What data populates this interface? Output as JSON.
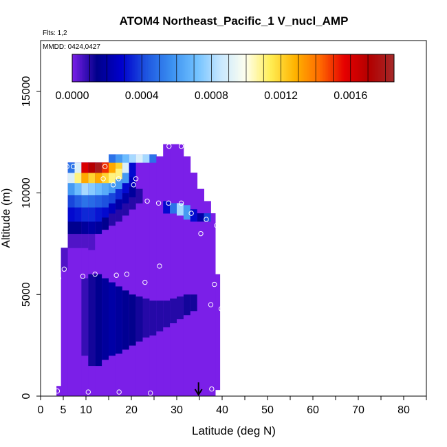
{
  "chart_data": {
    "type": "heatmap",
    "title": "ATOM4 Northeast_Pacific_1 V_nucl_AMP",
    "flights_note": "Flts: 1,2",
    "date_note": "MMDD: 0424,0427",
    "xlabel": "Latitude (deg N)",
    "ylabel": "Altitude (m)",
    "xlim": [
      0,
      85
    ],
    "ylim": [
      0,
      17500
    ],
    "x_ticks": [
      0,
      5,
      10,
      20,
      30,
      40,
      50,
      60,
      70,
      80
    ],
    "x_tick_labels": [
      "0",
      "5",
      "10",
      "20",
      "30",
      "40",
      "50",
      "60",
      "70",
      "80"
    ],
    "y_ticks": [
      0,
      5000,
      10000,
      15000
    ],
    "y_tick_labels": [
      "0",
      "5000",
      "10000",
      "15000"
    ],
    "colorbar": {
      "range": [
        0,
        0.00185
      ],
      "ticks": [
        0,
        0.0004,
        0.0008,
        0.0012,
        0.0016
      ],
      "tick_labels": [
        "0.0000",
        "0.0004",
        "0.0008",
        "0.0012",
        "0.0016"
      ],
      "colors": [
        "#7b1fe8",
        "#00008b",
        "#0000cd",
        "#1e56e0",
        "#3a8ff0",
        "#6fc0ff",
        "#c8e8ff",
        "#ffffee",
        "#ffee55",
        "#ffb300",
        "#ff6a00",
        "#e60000",
        "#b30000",
        "#a52a2a"
      ]
    },
    "colors": {
      "background_field": "#7b1fe8",
      "marker": "#ffffff",
      "arrow": "#000000"
    },
    "columns": [
      {
        "x0": 3.5,
        "x1": 4.5,
        "ymin": 0,
        "ymax": 500,
        "cells": []
      },
      {
        "x0": 4.5,
        "x1": 6,
        "ymin": 0,
        "ymax": 7300,
        "cells": [
          [
            6200,
            7300,
            5e-05
          ]
        ]
      },
      {
        "x0": 6,
        "x1": 7.5,
        "ymin": 0,
        "ymax": 11500,
        "cells": [
          [
            7300,
            8000,
            5e-05
          ],
          [
            8000,
            8600,
            0.00015
          ],
          [
            8600,
            9300,
            0.0003
          ],
          [
            9300,
            9900,
            0.0004
          ],
          [
            9900,
            10500,
            0.0006
          ],
          [
            10500,
            11000,
            0.0009
          ],
          [
            11000,
            11500,
            0.0005
          ]
        ]
      },
      {
        "x0": 7.5,
        "x1": 9,
        "ymin": 0,
        "ymax": 11500,
        "cells": [
          [
            7300,
            8000,
            5e-05
          ],
          [
            8000,
            8600,
            0.00015
          ],
          [
            8600,
            9300,
            0.00032
          ],
          [
            9300,
            9900,
            0.00045
          ],
          [
            9900,
            10500,
            0.0007
          ],
          [
            10500,
            11000,
            0.0011
          ],
          [
            11000,
            11500,
            0.0009
          ]
        ]
      },
      {
        "x0": 9,
        "x1": 10.5,
        "ymin": 0,
        "ymax": 11500,
        "cells": [
          [
            2000,
            5800,
            8e-05
          ],
          [
            7300,
            8000,
            5e-05
          ],
          [
            8000,
            8600,
            0.00018
          ],
          [
            8600,
            9300,
            0.00035
          ],
          [
            9300,
            9900,
            0.0005
          ],
          [
            9900,
            10500,
            0.0008
          ],
          [
            10500,
            11000,
            0.0013
          ],
          [
            11000,
            11500,
            0.0016
          ]
        ]
      },
      {
        "x0": 10.5,
        "x1": 12,
        "ymin": 0,
        "ymax": 11500,
        "cells": [
          [
            1500,
            6000,
            0.00012
          ],
          [
            7200,
            8000,
            5e-05
          ],
          [
            8000,
            8600,
            0.0002
          ],
          [
            8600,
            9300,
            0.00035
          ],
          [
            9300,
            9900,
            0.00048
          ],
          [
            9900,
            10500,
            0.00075
          ],
          [
            10500,
            11000,
            0.0012
          ],
          [
            11000,
            11500,
            0.0017
          ]
        ]
      },
      {
        "x0": 12,
        "x1": 13.5,
        "ymin": 0,
        "ymax": 11500,
        "cells": [
          [
            1500,
            6000,
            0.00015
          ],
          [
            8000,
            8600,
            0.00018
          ],
          [
            8600,
            9300,
            0.00032
          ],
          [
            9300,
            9900,
            0.00045
          ],
          [
            9900,
            10500,
            0.0007
          ],
          [
            10500,
            11000,
            0.0013
          ],
          [
            11000,
            11500,
            0.0018
          ]
        ]
      },
      {
        "x0": 13.5,
        "x1": 15,
        "ymin": 0,
        "ymax": 11500,
        "cells": [
          [
            1800,
            5800,
            0.00018
          ],
          [
            8200,
            8800,
            0.00015
          ],
          [
            8800,
            9300,
            0.0003
          ],
          [
            9300,
            9900,
            0.00042
          ],
          [
            9900,
            10500,
            0.00065
          ],
          [
            10500,
            11000,
            0.0012
          ],
          [
            11000,
            11500,
            0.0015
          ]
        ]
      },
      {
        "x0": 15,
        "x1": 16.5,
        "ymin": 0,
        "ymax": 11900,
        "cells": [
          [
            2000,
            5600,
            0.0002
          ],
          [
            8400,
            9000,
            0.0001
          ],
          [
            9000,
            9500,
            0.00025
          ],
          [
            9500,
            10000,
            0.0004
          ],
          [
            10000,
            10500,
            0.0006
          ],
          [
            10500,
            11000,
            0.0011
          ],
          [
            11000,
            11500,
            0.0013
          ],
          [
            11500,
            11900,
            0.0005
          ]
        ]
      },
      {
        "x0": 16.5,
        "x1": 18,
        "ymin": 0,
        "ymax": 11900,
        "cells": [
          [
            2100,
            5400,
            0.00018
          ],
          [
            8600,
            9200,
            0.0001
          ],
          [
            9200,
            9700,
            0.0002
          ],
          [
            9700,
            10200,
            0.00035
          ],
          [
            10200,
            10700,
            0.0006
          ],
          [
            10700,
            11200,
            0.0011
          ],
          [
            11200,
            11500,
            0.0012
          ],
          [
            11500,
            11900,
            0.0006
          ]
        ]
      },
      {
        "x0": 18,
        "x1": 19.5,
        "ymin": 0,
        "ymax": 11900,
        "cells": [
          [
            2300,
            5200,
            0.00016
          ],
          [
            8900,
            9500,
            0.0001
          ],
          [
            9500,
            10000,
            0.0002
          ],
          [
            10000,
            10500,
            0.0003
          ],
          [
            10500,
            11000,
            0.0006
          ],
          [
            11000,
            11500,
            0.0009
          ],
          [
            11500,
            11900,
            0.0007
          ]
        ]
      },
      {
        "x0": 19.5,
        "x1": 21,
        "ymin": 0,
        "ymax": 11900,
        "cells": [
          [
            2500,
            5000,
            0.00014
          ],
          [
            9200,
            9800,
            0.0001
          ],
          [
            9800,
            10300,
            0.00018
          ],
          [
            10300,
            10800,
            0.00025
          ],
          [
            10800,
            11500,
            0.0003
          ],
          [
            11500,
            11900,
            0.0008
          ]
        ]
      },
      {
        "x0": 21,
        "x1": 22.5,
        "ymin": 0,
        "ymax": 11900,
        "cells": [
          [
            2700,
            4900,
            0.00012
          ],
          [
            9500,
            10200,
            0.0001
          ],
          [
            11500,
            11900,
            0.0009
          ]
        ]
      },
      {
        "x0": 22.5,
        "x1": 24,
        "ymin": 0,
        "ymax": 11900,
        "cells": [
          [
            2900,
            4800,
            0.0001
          ],
          [
            11500,
            11900,
            0.0008
          ]
        ]
      },
      {
        "x0": 24,
        "x1": 25.5,
        "ymin": 0,
        "ymax": 11900,
        "cells": [
          [
            3000,
            4700,
            0.0001
          ],
          [
            11500,
            11900,
            0.0005
          ]
        ]
      },
      {
        "x0": 25.5,
        "x1": 27,
        "ymin": 0,
        "ymax": 11800,
        "cells": [
          [
            3200,
            4700,
            0.0001
          ]
        ]
      },
      {
        "x0": 27,
        "x1": 28.5,
        "ymin": 0,
        "ymax": 12400,
        "cells": [
          [
            3400,
            4700,
            0.0001
          ],
          [
            9000,
            9600,
            0.0003
          ]
        ]
      },
      {
        "x0": 28.5,
        "x1": 30,
        "ymin": 0,
        "ymax": 12400,
        "cells": [
          [
            3600,
            4800,
            0.0001
          ],
          [
            9000,
            9500,
            0.0005
          ]
        ]
      },
      {
        "x0": 30,
        "x1": 31.5,
        "ymin": 0,
        "ymax": 12400,
        "cells": [
          [
            3800,
            4900,
            0.0001
          ],
          [
            8900,
            9500,
            0.0008
          ]
        ]
      },
      {
        "x0": 31.5,
        "x1": 33,
        "ymin": 0,
        "ymax": 11800,
        "cells": [
          [
            4000,
            5000,
            0.00012
          ],
          [
            8700,
            9400,
            0.0006
          ]
        ]
      },
      {
        "x0": 33,
        "x1": 34.5,
        "ymin": 0,
        "ymax": 11000,
        "cells": [
          [
            4200,
            5000,
            0.00012
          ],
          [
            8600,
            9200,
            0.0003
          ]
        ]
      },
      {
        "x0": 34.5,
        "x1": 36,
        "ymin": 0,
        "ymax": 10200,
        "cells": [
          [
            8600,
            9000,
            0.0002
          ]
        ]
      },
      {
        "x0": 36,
        "x1": 37.5,
        "ymin": 0,
        "ymax": 9600,
        "cells": [
          [
            8600,
            9000,
            0.0004
          ]
        ]
      },
      {
        "x0": 37.5,
        "x1": 38.5,
        "ymin": 0,
        "ymax": 9000,
        "cells": []
      },
      {
        "x0": 38.5,
        "x1": 39.5,
        "ymin": 300,
        "ymax": 6000,
        "cells": []
      }
    ],
    "samples": [
      {
        "x": 3.7,
        "y": 250
      },
      {
        "x": 4.0,
        "y": 5800
      },
      {
        "x": 5.2,
        "y": 6250
      },
      {
        "x": 5.8,
        "y": 11300
      },
      {
        "x": 7.2,
        "y": 11300
      },
      {
        "x": 10.5,
        "y": 200
      },
      {
        "x": 9.3,
        "y": 5900
      },
      {
        "x": 12.0,
        "y": 6000
      },
      {
        "x": 13.8,
        "y": 10700
      },
      {
        "x": 14.2,
        "y": 11300
      },
      {
        "x": 16.0,
        "y": 10400
      },
      {
        "x": 16.7,
        "y": 5950
      },
      {
        "x": 17.2,
        "y": 10700
      },
      {
        "x": 17.3,
        "y": 200
      },
      {
        "x": 19.0,
        "y": 6000
      },
      {
        "x": 20.5,
        "y": 10400
      },
      {
        "x": 21.0,
        "y": 10700
      },
      {
        "x": 23.0,
        "y": 5600
      },
      {
        "x": 23.5,
        "y": 9600
      },
      {
        "x": 24.2,
        "y": 150
      },
      {
        "x": 26.0,
        "y": 9500
      },
      {
        "x": 26.2,
        "y": 6400
      },
      {
        "x": 28.2,
        "y": 9500
      },
      {
        "x": 28.3,
        "y": 12300
      },
      {
        "x": 31.0,
        "y": 12300
      },
      {
        "x": 31.0,
        "y": 9500
      },
      {
        "x": 33.2,
        "y": 9000
      },
      {
        "x": 35.3,
        "y": 8000
      },
      {
        "x": 36.5,
        "y": 8700
      },
      {
        "x": 37.5,
        "y": 4500
      },
      {
        "x": 37.7,
        "y": 350
      },
      {
        "x": 38.3,
        "y": 5500
      },
      {
        "x": 38.8,
        "y": 8400
      },
      {
        "x": 39.8,
        "y": 4300
      }
    ],
    "arrow_x": 34.8
  }
}
